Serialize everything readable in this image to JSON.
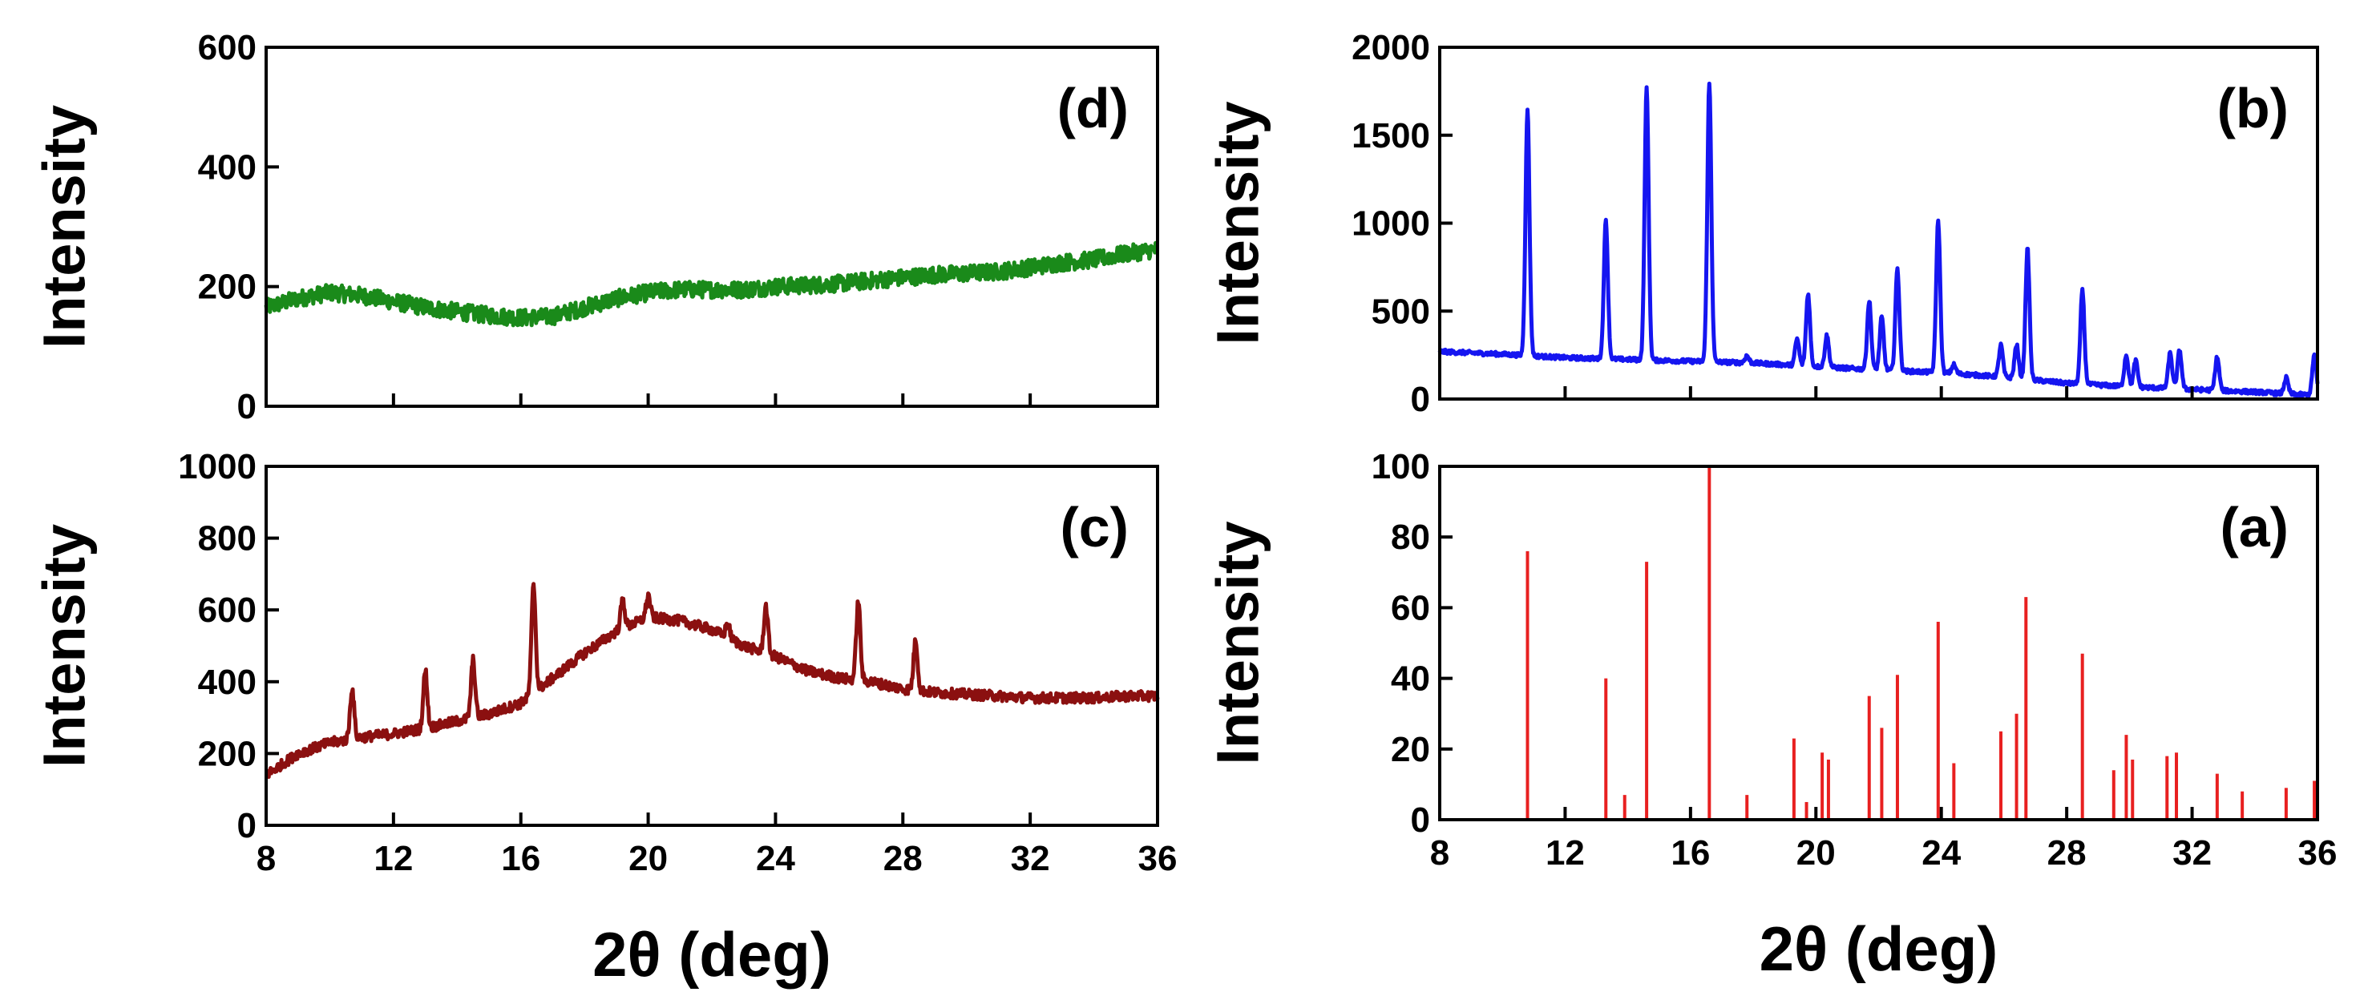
{
  "chart_data": [
    {
      "id": "d",
      "type": "line",
      "panel_label": "(d)",
      "ylabel": "Intensity",
      "xlabel": "",
      "xlim": [
        8,
        36
      ],
      "ylim": [
        0,
        600
      ],
      "xticks": [
        8,
        12,
        16,
        20,
        24,
        28,
        32,
        36
      ],
      "yticks": [
        0,
        200,
        400,
        600
      ],
      "show_x_tick_labels": false,
      "color": "#1a8a1a",
      "series": [
        {
          "name": "(d)",
          "baseline": [
            [
              8,
              165
            ],
            [
              9,
              180
            ],
            [
              10,
              190
            ],
            [
              11,
              185
            ],
            [
              12,
              175
            ],
            [
              13,
              165
            ],
            [
              14,
              158
            ],
            [
              15,
              152
            ],
            [
              16,
              148
            ],
            [
              17,
              150
            ],
            [
              18,
              165
            ],
            [
              19,
              180
            ],
            [
              20,
              190
            ],
            [
              21,
              195
            ],
            [
              22,
              195
            ],
            [
              23,
              195
            ],
            [
              24,
              200
            ],
            [
              25,
              202
            ],
            [
              26,
              205
            ],
            [
              27,
              210
            ],
            [
              28,
              215
            ],
            [
              29,
              220
            ],
            [
              30,
              222
            ],
            [
              31,
              225
            ],
            [
              32,
              232
            ],
            [
              33,
              240
            ],
            [
              34,
              245
            ],
            [
              35,
              255
            ],
            [
              36,
              262
            ]
          ],
          "noise": 14,
          "peaks": []
        }
      ]
    },
    {
      "id": "b",
      "type": "line",
      "panel_label": "(b)",
      "ylabel": "Intensity",
      "xlabel": "",
      "xlim": [
        8,
        36
      ],
      "ylim": [
        0,
        2000
      ],
      "xticks": [
        8,
        12,
        16,
        20,
        24,
        28,
        32,
        36
      ],
      "yticks": [
        0,
        500,
        1000,
        1500,
        2000
      ],
      "show_x_tick_labels": false,
      "color": "#1515f0",
      "series": [
        {
          "name": "(b)",
          "baseline": [
            [
              8,
              270
            ],
            [
              10,
              255
            ],
            [
              12,
              235
            ],
            [
              14,
              225
            ],
            [
              16,
              215
            ],
            [
              18,
              205
            ],
            [
              20,
              185
            ],
            [
              22,
              165
            ],
            [
              24,
              150
            ],
            [
              26,
              125
            ],
            [
              28,
              90
            ],
            [
              30,
              70
            ],
            [
              32,
              55
            ],
            [
              34,
              40
            ],
            [
              35.5,
              25
            ],
            [
              36,
              20
            ]
          ],
          "noise": 12,
          "peaks": [
            [
              10.8,
              1390
            ],
            [
              13.3,
              790
            ],
            [
              14.6,
              1540
            ],
            [
              16.6,
              1580
            ],
            [
              17.8,
              40
            ],
            [
              19.4,
              150
            ],
            [
              19.75,
              410
            ],
            [
              20.35,
              180
            ],
            [
              21.7,
              390
            ],
            [
              22.1,
              300
            ],
            [
              22.6,
              580
            ],
            [
              23.9,
              860
            ],
            [
              24.4,
              50
            ],
            [
              25.9,
              180
            ],
            [
              26.4,
              190
            ],
            [
              26.75,
              740
            ],
            [
              28.5,
              530
            ],
            [
              29.9,
              180
            ],
            [
              30.2,
              150
            ],
            [
              31.3,
              200
            ],
            [
              31.6,
              220
            ],
            [
              32.8,
              190
            ],
            [
              35.0,
              90
            ],
            [
              35.9,
              230
            ]
          ]
        }
      ]
    },
    {
      "id": "c",
      "type": "line",
      "panel_label": "(c)",
      "ylabel": "Intensity",
      "xlabel": "2θ (deg)",
      "xlim": [
        8,
        36
      ],
      "ylim": [
        0,
        1000
      ],
      "xticks": [
        8,
        12,
        16,
        20,
        24,
        28,
        32,
        36
      ],
      "yticks": [
        0,
        200,
        400,
        600,
        800,
        1000
      ],
      "show_x_tick_labels": true,
      "color": "#8b1010",
      "series": [
        {
          "name": "(c)",
          "baseline": [
            [
              8,
              140
            ],
            [
              9,
              200
            ],
            [
              10,
              230
            ],
            [
              11,
              245
            ],
            [
              12,
              255
            ],
            [
              13,
              270
            ],
            [
              14,
              290
            ],
            [
              15,
              310
            ],
            [
              16,
              340
            ],
            [
              17,
              410
            ],
            [
              18,
              480
            ],
            [
              19,
              540
            ],
            [
              20,
              580
            ],
            [
              21,
              570
            ],
            [
              22,
              545
            ],
            [
              23,
              500
            ],
            [
              24,
              470
            ],
            [
              25,
              430
            ],
            [
              26,
              410
            ],
            [
              27,
              400
            ],
            [
              28,
              380
            ],
            [
              29,
              370
            ],
            [
              30,
              365
            ],
            [
              31,
              360
            ],
            [
              32,
              355
            ],
            [
              33,
              355
            ],
            [
              34,
              355
            ],
            [
              35,
              360
            ],
            [
              36,
              360
            ]
          ],
          "noise": 14,
          "peaks": [
            [
              10.7,
              140
            ],
            [
              13.0,
              160
            ],
            [
              14.5,
              160
            ],
            [
              16.4,
              300
            ],
            [
              19.2,
              80
            ],
            [
              20.0,
              60
            ],
            [
              22.5,
              40
            ],
            [
              23.7,
              130
            ],
            [
              26.6,
              220
            ],
            [
              28.4,
              140
            ]
          ]
        }
      ]
    },
    {
      "id": "a",
      "type": "bar",
      "panel_label": "(a)",
      "ylabel": "Intensity",
      "xlabel": "2θ (deg)",
      "xlim": [
        8,
        36
      ],
      "ylim": [
        0,
        100
      ],
      "xticks": [
        8,
        12,
        16,
        20,
        24,
        28,
        32,
        36
      ],
      "yticks": [
        0,
        20,
        40,
        60,
        80,
        100
      ],
      "show_x_tick_labels": true,
      "color": "#e82020",
      "x": [
        10.8,
        13.3,
        13.9,
        14.6,
        16.6,
        17.8,
        19.3,
        19.7,
        20.2,
        20.4,
        21.7,
        22.1,
        22.6,
        23.9,
        24.4,
        25.9,
        26.4,
        26.7,
        28.5,
        29.5,
        29.9,
        30.1,
        31.2,
        31.5,
        32.8,
        33.6,
        35.0,
        35.9
      ],
      "values": [
        76,
        40,
        7,
        73,
        100,
        7,
        23,
        5,
        19,
        17,
        35,
        26,
        41,
        56,
        16,
        25,
        30,
        63,
        47,
        14,
        24,
        17,
        18,
        19,
        13,
        8,
        9,
        11
      ]
    }
  ]
}
